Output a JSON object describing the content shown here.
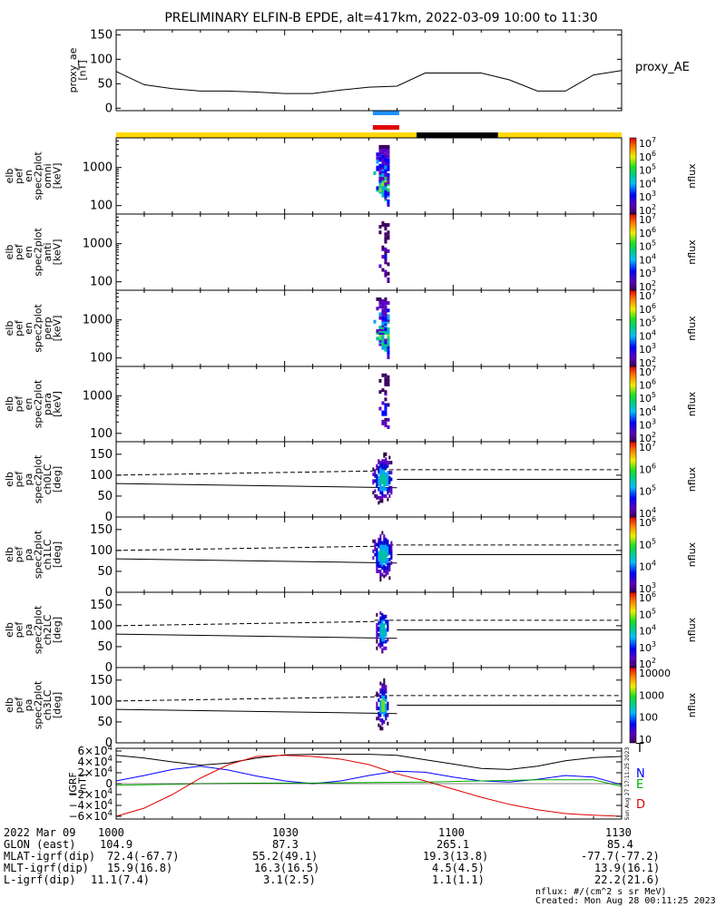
{
  "title": "PRELIMINARY ELFIN-B EPDE, alt=417km, 2022-03-09 10:00 to 11:30",
  "colors": {
    "sunlit": "#ffd800",
    "shadow": "#000000",
    "bar_blue": "#1e90ff",
    "bar_red": "#e00000",
    "line_T": "#000000",
    "line_N": "#0000ff",
    "line_E": "#00b000",
    "line_D": "#e00000"
  },
  "chart_data": [
    {
      "type": "line",
      "name": "proxy_ae",
      "ylabel": [
        "proxy_ae",
        "[nT]"
      ],
      "legend": "proxy_AE",
      "ylim": [
        -5,
        160
      ],
      "yticks": [
        0,
        50,
        100,
        150
      ],
      "x_minutes": [
        0,
        5,
        10,
        15,
        20,
        25,
        30,
        35,
        40,
        45,
        50,
        55,
        60,
        65,
        70,
        75,
        80,
        85,
        90
      ],
      "values": [
        75,
        48,
        40,
        35,
        35,
        33,
        30,
        30,
        37,
        43,
        45,
        72,
        72,
        72,
        58,
        35,
        35,
        68,
        77
      ]
    },
    {
      "type": "heatmap",
      "name": "spec2plot-omni",
      "ylabel": [
        "elb",
        "pef",
        "en",
        "spec2plot",
        "omni",
        "[keV]"
      ],
      "yscale": "log",
      "ylim": [
        60,
        6000
      ],
      "yticks": [
        100,
        1000
      ],
      "colorbar": {
        "label": "nflux",
        "ticks": [
          "10^7",
          "10^6",
          "10^5",
          "10^4",
          "10^3",
          "10^2"
        ]
      }
    },
    {
      "type": "heatmap",
      "name": "spec2plot-anti",
      "ylabel": [
        "elb",
        "pef",
        "en",
        "spec2plot",
        "anti",
        "[keV]"
      ],
      "yscale": "log",
      "ylim": [
        60,
        6000
      ],
      "yticks": [
        100,
        1000
      ],
      "colorbar": {
        "label": "nflux",
        "ticks": [
          "10^7",
          "10^6",
          "10^5",
          "10^4",
          "10^3",
          "10^2"
        ]
      }
    },
    {
      "type": "heatmap",
      "name": "spec2plot-perp",
      "ylabel": [
        "elb",
        "pef",
        "en",
        "spec2plot",
        "perp",
        "[keV]"
      ],
      "yscale": "log",
      "ylim": [
        60,
        6000
      ],
      "yticks": [
        100,
        1000
      ],
      "colorbar": {
        "label": "nflux",
        "ticks": [
          "10^7",
          "10^6",
          "10^5",
          "10^4",
          "10^3",
          "10^2"
        ]
      }
    },
    {
      "type": "heatmap",
      "name": "spec2plot-para",
      "ylabel": [
        "elb",
        "pef",
        "en",
        "spec2plot",
        "para",
        "[keV]"
      ],
      "yscale": "log",
      "ylim": [
        60,
        6000
      ],
      "yticks": [
        100,
        1000
      ],
      "colorbar": {
        "label": "nflux",
        "ticks": [
          "10^7",
          "10^6",
          "10^5",
          "10^4",
          "10^3",
          "10^2"
        ]
      }
    },
    {
      "type": "heatmap",
      "name": "spec2plot-ch0LC",
      "ylabel": [
        "elb",
        "pef",
        "pa",
        "spec2plot",
        "ch0LC",
        "[deg]"
      ],
      "ylim": [
        0,
        180
      ],
      "yticks": [
        0,
        50,
        100,
        150
      ],
      "colorbar": {
        "label": "nflux",
        "ticks": [
          "10^7",
          "10^6",
          "10^5",
          "10^4"
        ]
      }
    },
    {
      "type": "heatmap",
      "name": "spec2plot-ch1LC",
      "ylabel": [
        "elb",
        "pef",
        "pa",
        "spec2plot",
        "ch1LC",
        "[deg]"
      ],
      "ylim": [
        0,
        180
      ],
      "yticks": [
        0,
        50,
        100,
        150
      ],
      "colorbar": {
        "label": "nflux",
        "ticks": [
          "10^6",
          "10^5",
          "10^4",
          "10^3"
        ]
      }
    },
    {
      "type": "heatmap",
      "name": "spec2plot-ch2LC",
      "ylabel": [
        "elb",
        "pef",
        "pa",
        "spec2plot",
        "ch2LC",
        "[deg]"
      ],
      "ylim": [
        0,
        180
      ],
      "yticks": [
        0,
        50,
        100,
        150
      ],
      "colorbar": {
        "label": "nflux",
        "ticks": [
          "10^6",
          "10^5",
          "10^4",
          "10^3",
          "10^2"
        ]
      }
    },
    {
      "type": "heatmap",
      "name": "spec2plot-ch3LC",
      "ylabel": [
        "elb",
        "pef",
        "pa",
        "spec2plot",
        "ch3LC",
        "[deg]"
      ],
      "ylim": [
        0,
        180
      ],
      "yticks": [
        0,
        50,
        100,
        150
      ],
      "colorbar": {
        "label": "nflux",
        "ticks": [
          "10000",
          "1000",
          "100",
          "10"
        ]
      }
    },
    {
      "type": "line",
      "name": "IGRF",
      "ylabel": [
        "IGRF",
        "[nT]"
      ],
      "ylim": [
        -65000,
        65000
      ],
      "yticks": [
        "6×10^4",
        "4×10^4",
        "2×10^4",
        "0",
        "−2×10^4",
        "−4×10^4",
        "−6×10^4"
      ],
      "x_minutes": [
        0,
        5,
        10,
        15,
        20,
        25,
        30,
        35,
        40,
        45,
        50,
        55,
        60,
        65,
        70,
        75,
        80,
        85,
        90
      ],
      "series": [
        {
          "name": "T",
          "values": [
            52000,
            47000,
            40000,
            34000,
            38000,
            47000,
            53000,
            54000,
            54000,
            54000,
            52000,
            44000,
            36000,
            28000,
            26000,
            32000,
            42000,
            48000,
            50000
          ]
        },
        {
          "name": "N",
          "values": [
            5000,
            15000,
            26000,
            32000,
            25000,
            14000,
            5000,
            0,
            5000,
            15000,
            23000,
            21000,
            12000,
            5000,
            3000,
            8000,
            15000,
            12000,
            -2000
          ]
        },
        {
          "name": "E",
          "values": [
            -3000,
            -2000,
            -1000,
            0,
            500,
            800,
            1000,
            1000,
            1500,
            2000,
            2500,
            3000,
            4000,
            5000,
            6000,
            7000,
            7000,
            7000,
            -5000
          ]
        },
        {
          "name": "D",
          "values": [
            -60000,
            -45000,
            -20000,
            10000,
            35000,
            50000,
            52000,
            50000,
            45000,
            35000,
            18000,
            5000,
            -10000,
            -25000,
            -38000,
            -48000,
            -55000,
            -58000,
            -60000
          ]
        }
      ]
    }
  ],
  "timeline": {
    "ticks": [
      "1000",
      "1030",
      "1100",
      "1130"
    ],
    "rows": [
      {
        "label": "2022 Mar 09",
        "values": [
          "1000",
          "1030",
          "1100",
          "1130"
        ]
      },
      {
        "label": "GLON (east)",
        "values": [
          "104.9",
          "87.3",
          "265.1",
          "85.4"
        ]
      },
      {
        "label": "MLAT-igrf(dip)",
        "values": [
          "72.4(-67.7)",
          "55.2(49.1)",
          "19.3(13.8)",
          "-77.7(-77.2)"
        ]
      },
      {
        "label": "MLT-igrf(dip)",
        "values": [
          "15.9(16.8)",
          "16.3(16.5)",
          "4.5(4.5)",
          "13.9(16.1)"
        ]
      },
      {
        "label": "L-igrf(dip)",
        "values": [
          "11.1(7.4)",
          "3.1(2.5)",
          "1.1(1.1)",
          "22.2(21.6)"
        ]
      }
    ]
  },
  "footer": {
    "units": "nflux: #/(cm^2 s sr MeV)",
    "created": "Created: Mon Aug 28 00:11:25 2023",
    "side_stamp": "Sun Aug 27 17:11:25 2023"
  }
}
